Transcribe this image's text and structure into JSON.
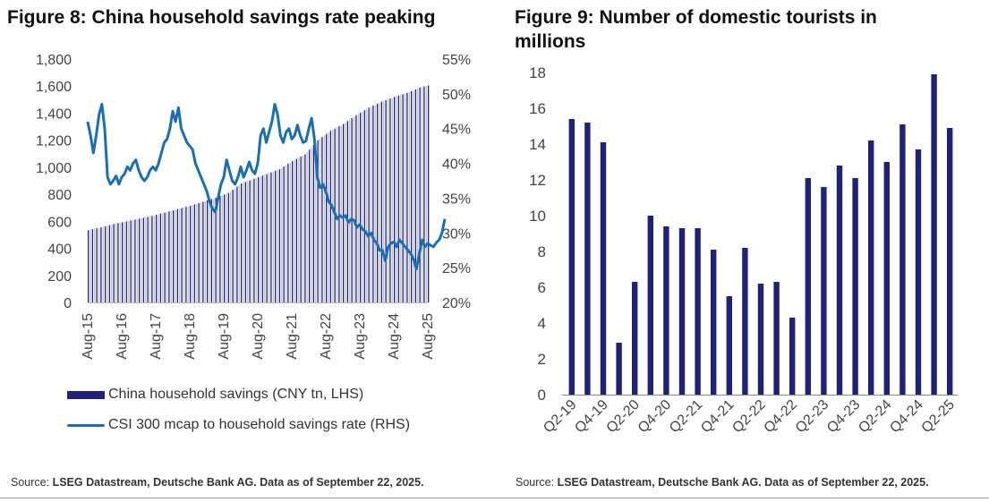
{
  "fig8": {
    "title": "Figure 8: China household savings rate peaking",
    "source_label": "Source:",
    "source_text": "LSEG Datastream, Deutsche Bank AG. Data as of September 22, 2025.",
    "legend": [
      {
        "label": "China household savings (CNY tn, LHS)"
      },
      {
        "label": "CSI 300 mcap to household savings rate (RHS)"
      }
    ]
  },
  "fig9": {
    "title": "Figure 9: Number of domestic tourists in millions",
    "source_label": "Source:",
    "source_text": "LSEG Datastream, Deutsche Bank AG. Data as of September 22, 2025."
  },
  "colors": {
    "bar_dark": "#20217a",
    "bar_light": "#b9bdd6",
    "line": "#1a6fb3",
    "axis_text": "#444444"
  },
  "chart_data": [
    {
      "id": "fig8",
      "type": "bar+line",
      "title": "Figure 8: China household savings rate peaking",
      "x_tick_labels": [
        "Aug-15",
        "Aug-16",
        "Aug-17",
        "Aug-18",
        "Aug-19",
        "Aug-20",
        "Aug-21",
        "Aug-22",
        "Aug-23",
        "Aug-24",
        "Aug-25"
      ],
      "x_start_year": 2015,
      "x_start_month": 8,
      "y_left": {
        "min": 0,
        "max": 1800,
        "ticks": [
          0,
          200,
          400,
          600,
          800,
          1000,
          1200,
          1400,
          1600,
          1800
        ],
        "tick_labels": [
          "0",
          "200",
          "400",
          "600",
          "800",
          "1,000",
          "1,200",
          "1,400",
          "1,600",
          "1,800"
        ]
      },
      "y_right": {
        "min": 20,
        "max": 55,
        "ticks": [
          20,
          25,
          30,
          35,
          40,
          45,
          50,
          55
        ],
        "tick_labels": [
          "20%",
          "25%",
          "30%",
          "35%",
          "40%",
          "45%",
          "50%",
          "55%"
        ]
      },
      "series": [
        {
          "name": "China household savings (CNY tn, LHS)",
          "kind": "bar",
          "axis": "left",
          "anchors": [
            [
              0,
              535
            ],
            [
              6,
              555
            ],
            [
              12,
              580
            ],
            [
              18,
              600
            ],
            [
              24,
              620
            ],
            [
              30,
              640
            ],
            [
              36,
              665
            ],
            [
              42,
              690
            ],
            [
              48,
              715
            ],
            [
              54,
              745
            ],
            [
              60,
              775
            ],
            [
              66,
              810
            ],
            [
              72,
              880
            ],
            [
              78,
              915
            ],
            [
              84,
              950
            ],
            [
              90,
              985
            ],
            [
              96,
              1045
            ],
            [
              102,
              1095
            ],
            [
              108,
              1200
            ],
            [
              114,
              1270
            ],
            [
              120,
              1320
            ],
            [
              126,
              1385
            ],
            [
              132,
              1440
            ],
            [
              138,
              1485
            ],
            [
              144,
              1520
            ],
            [
              150,
              1550
            ],
            [
              156,
              1590
            ],
            [
              160,
              1605
            ],
            [
              120,
              1300
            ]
          ]
        },
        {
          "name": "CSI 300 mcap to household savings rate (RHS)",
          "kind": "line",
          "axis": "right",
          "points": [
            [
              0,
              46
            ],
            [
              1,
              44
            ],
            [
              2,
              41.5
            ],
            [
              3,
              44
            ],
            [
              4,
              47
            ],
            [
              5,
              48.5
            ],
            [
              6,
              45
            ],
            [
              7,
              38
            ],
            [
              8,
              37
            ],
            [
              9,
              37.5
            ],
            [
              10,
              38.2
            ],
            [
              11,
              37
            ],
            [
              12,
              38
            ],
            [
              13,
              38.5
            ],
            [
              14,
              39.5
            ],
            [
              15,
              39
            ],
            [
              16,
              40
            ],
            [
              17,
              40.5
            ],
            [
              18,
              39
            ],
            [
              19,
              38
            ],
            [
              20,
              37.5
            ],
            [
              21,
              38
            ],
            [
              22,
              39
            ],
            [
              23,
              39.5
            ],
            [
              24,
              39
            ],
            [
              25,
              40
            ],
            [
              26,
              41.5
            ],
            [
              27,
              43
            ],
            [
              28,
              43.5
            ],
            [
              29,
              45
            ],
            [
              30,
              47.5
            ],
            [
              31,
              46
            ],
            [
              32,
              48
            ],
            [
              33,
              45
            ],
            [
              34,
              44
            ],
            [
              35,
              43
            ],
            [
              36,
              42.5
            ],
            [
              37,
              42
            ],
            [
              38,
              40
            ],
            [
              39,
              39
            ],
            [
              40,
              38
            ],
            [
              41,
              37
            ],
            [
              42,
              36
            ],
            [
              43,
              34.5
            ],
            [
              44,
              33.5
            ],
            [
              45,
              33
            ],
            [
              46,
              35
            ],
            [
              47,
              37
            ],
            [
              48,
              38
            ],
            [
              49,
              40.5
            ],
            [
              50,
              39
            ],
            [
              51,
              37.5
            ],
            [
              52,
              37
            ],
            [
              53,
              38
            ],
            [
              54,
              39.5
            ],
            [
              55,
              38
            ],
            [
              56,
              39
            ],
            [
              57,
              40.2
            ],
            [
              58,
              39
            ],
            [
              59,
              38.5
            ],
            [
              60,
              40
            ],
            [
              61,
              44
            ],
            [
              62,
              45
            ],
            [
              63,
              43
            ],
            [
              64,
              44.5
            ],
            [
              65,
              46
            ],
            [
              66,
              48.5
            ],
            [
              67,
              47
            ],
            [
              68,
              44
            ],
            [
              69,
              43
            ],
            [
              70,
              44.5
            ],
            [
              71,
              45
            ],
            [
              72,
              43.5
            ],
            [
              73,
              44
            ],
            [
              74,
              45.5
            ],
            [
              75,
              44
            ],
            [
              76,
              43
            ],
            [
              77,
              43.2
            ],
            [
              78,
              45
            ],
            [
              79,
              46.5
            ],
            [
              80,
              43.5
            ],
            [
              81,
              38
            ],
            [
              82,
              36.5
            ],
            [
              83,
              37
            ],
            [
              84,
              36
            ],
            [
              85,
              34.5
            ],
            [
              86,
              34
            ],
            [
              87,
              33
            ],
            [
              88,
              32
            ],
            [
              89,
              32.5
            ],
            [
              90,
              32.2
            ],
            [
              91,
              32.5
            ],
            [
              92,
              31.5
            ],
            [
              93,
              32
            ],
            [
              94,
              31.8
            ],
            [
              95,
              30.8
            ],
            [
              96,
              31.2
            ],
            [
              97,
              30.5
            ],
            [
              98,
              30.2
            ],
            [
              99,
              29.5
            ],
            [
              100,
              30
            ],
            [
              101,
              29
            ],
            [
              102,
              28.5
            ],
            [
              103,
              27.5
            ],
            [
              104,
              27.5
            ],
            [
              105,
              26
            ],
            [
              106,
              28
            ],
            [
              107,
              28.5
            ],
            [
              108,
              28.7
            ],
            [
              109,
              28
            ],
            [
              110,
              29
            ],
            [
              111,
              28.5
            ],
            [
              112,
              28
            ],
            [
              113,
              27.5
            ],
            [
              114,
              27
            ],
            [
              115,
              26.2
            ],
            [
              116,
              24.8
            ],
            [
              117,
              27
            ],
            [
              118,
              29
            ],
            [
              119,
              28
            ],
            [
              120,
              28.5
            ],
            [
              121,
              28.2
            ],
            [
              122,
              28
            ],
            [
              123,
              28.6
            ],
            [
              124,
              29
            ],
            [
              125,
              30
            ],
            [
              126,
              32
            ]
          ]
        }
      ],
      "note": "Line series index is months from Aug-2015 (x axis spans Aug-15 to Aug-25)."
    },
    {
      "id": "fig9",
      "type": "bar",
      "title": "Figure 9: Number of domestic tourists in millions",
      "categories": [
        "Q2-19",
        "Q3-19",
        "Q4-19",
        "Q1-20",
        "Q2-20",
        "Q3-20",
        "Q4-20",
        "Q1-21",
        "Q2-21",
        "Q3-21",
        "Q4-21",
        "Q1-22",
        "Q2-22",
        "Q3-22",
        "Q4-22",
        "Q1-23",
        "Q2-23",
        "Q3-23",
        "Q4-23",
        "Q1-24",
        "Q2-24",
        "Q3-24",
        "Q4-24",
        "Q1-25",
        "Q2-25"
      ],
      "visible_tick_labels": [
        "Q2-19",
        "Q4-19",
        "Q2-20",
        "Q4-20",
        "Q2-21",
        "Q4-21",
        "Q2-22",
        "Q4-22",
        "Q2-23",
        "Q4-23",
        "Q2-24",
        "Q4-24",
        "Q2-25"
      ],
      "values": [
        15.4,
        15.2,
        14.1,
        2.9,
        6.3,
        10.0,
        9.4,
        9.3,
        9.3,
        8.1,
        5.5,
        8.2,
        6.2,
        6.3,
        4.3,
        12.1,
        11.6,
        12.8,
        12.1,
        14.2,
        13.0,
        15.1,
        13.7,
        17.9,
        14.9
      ],
      "ylim": [
        0,
        18
      ],
      "y_ticks": [
        0,
        2,
        4,
        6,
        8,
        10,
        12,
        14,
        16,
        18
      ],
      "xlabel": "",
      "ylabel": ""
    }
  ]
}
